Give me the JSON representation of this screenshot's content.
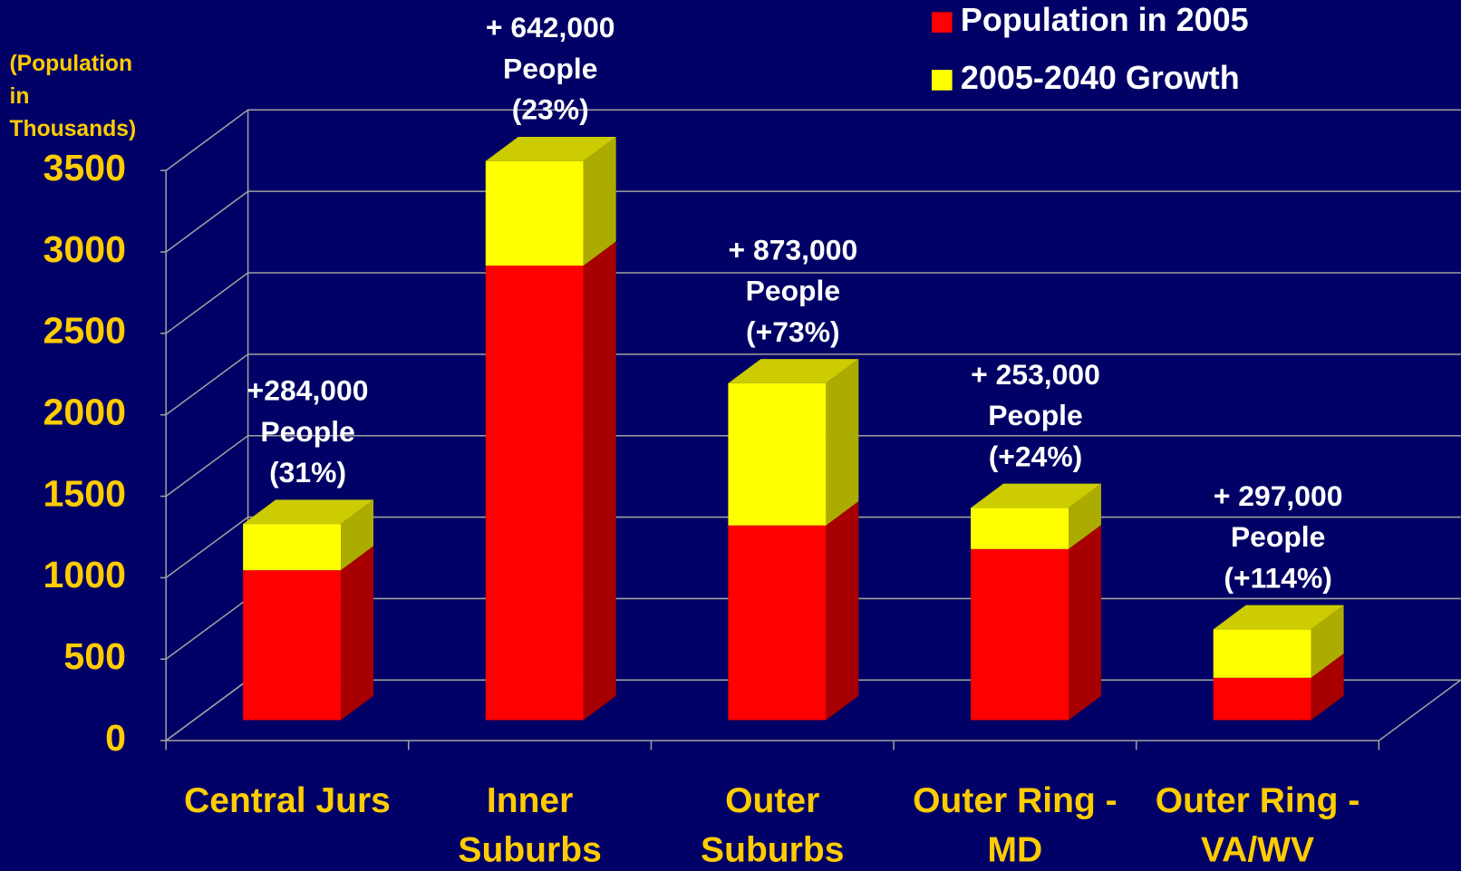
{
  "chart_data": {
    "type": "bar3d_stacked",
    "y_label": "(Population in Thousands)",
    "categories": [
      "Central Jurs",
      "Inner Suburbs",
      "Outer Suburbs",
      "Outer Ring - MD",
      "Outer Ring - VA/WV"
    ],
    "series": [
      {
        "name": "Population in 2005",
        "color": "#ff0000",
        "side_color": "#a80000",
        "values": [
          920,
          2790,
          1195,
          1050,
          260
        ]
      },
      {
        "name": "2005-2040 Growth",
        "color": "#ffff00",
        "side_color": "#acac00",
        "values": [
          284,
          642,
          873,
          253,
          297
        ],
        "value_labels": [
          "+284,000",
          "+ 642,000",
          "+ 873,000",
          "+ 253,000",
          "+ 297,000"
        ]
      }
    ],
    "annotations": [
      [
        "People",
        "(31%)"
      ],
      [
        "People",
        "(23%)"
      ],
      [
        "People",
        "(+73%)"
      ],
      [
        "People",
        "(+24%)"
      ],
      [
        "People",
        "(+114%)"
      ]
    ],
    "ylim": [
      0,
      3500
    ],
    "yticks": [
      0,
      500,
      1000,
      1500,
      2000,
      2500,
      3000,
      3500
    ],
    "grid": true,
    "legend": "top-right"
  }
}
